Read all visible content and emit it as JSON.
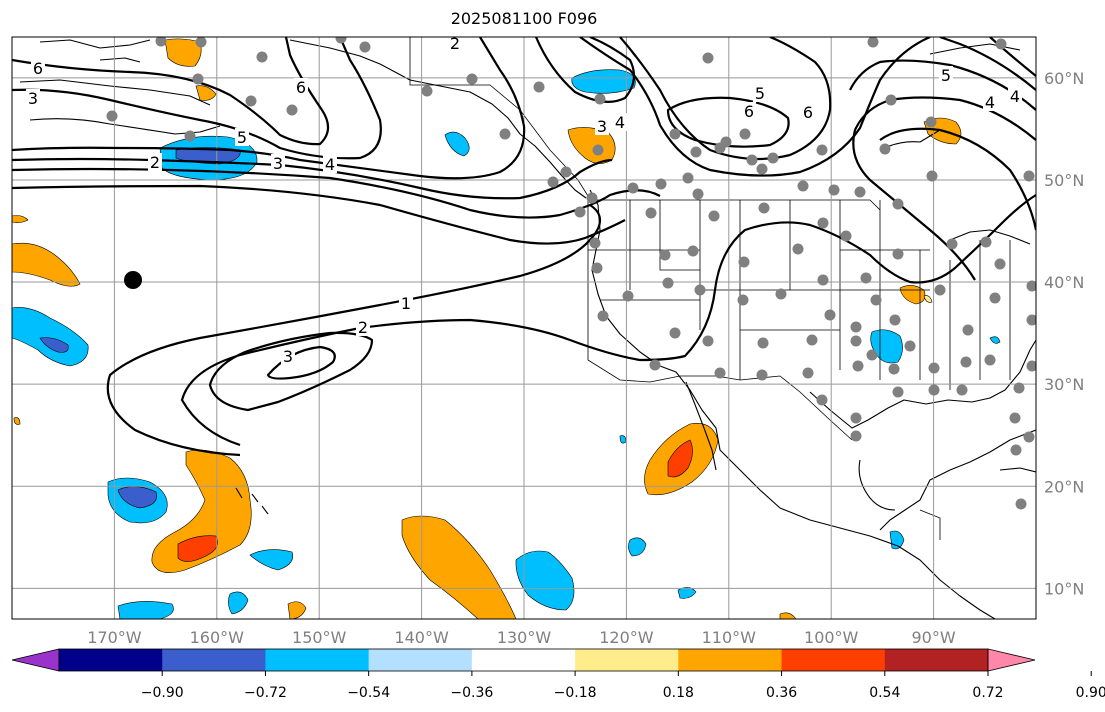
{
  "title": "2025081100 F096",
  "map": {
    "projection": "PlateCarree",
    "lon_range": [
      -180,
      -80
    ],
    "lat_range": [
      7,
      64
    ],
    "lon_gridlines": [
      -170,
      -160,
      -150,
      -140,
      -130,
      -120,
      -110,
      -100,
      -90
    ],
    "lat_gridlines": [
      10,
      20,
      30,
      40,
      50,
      60
    ],
    "lon_labels": [
      "170°W",
      "160°W",
      "150°W",
      "140°W",
      "130°W",
      "120°W",
      "110°W",
      "100°W",
      "90°W"
    ],
    "lat_labels": [
      "10°N",
      "20°N",
      "30°N",
      "40°N",
      "50°N",
      "60°N"
    ],
    "grid": true,
    "contour_labels": [
      "6",
      "3",
      "2",
      "5",
      "3",
      "4",
      "6",
      "5",
      "6",
      "4",
      "3",
      "4",
      "1",
      "2",
      "3",
      "5",
      "4",
      "6",
      "2"
    ],
    "highlight_marker": {
      "lon": -168.8,
      "lat": 41.0,
      "color": "#000000"
    },
    "station_marker_color": "#808080"
  },
  "colorbar": {
    "colors": [
      "#9933cc",
      "#00008b",
      "#3a5fcd",
      "#00bfff",
      "#b3e0ff",
      "#ffffff",
      "#ffec8b",
      "#ffa500",
      "#ff3f00",
      "#b22222",
      "#ff88aa"
    ],
    "ticks": [
      "−0.90",
      "−0.72",
      "−0.54",
      "−0.36",
      "−0.18",
      "0.18",
      "0.36",
      "0.54",
      "0.72",
      "0.90"
    ],
    "extend": "both"
  }
}
